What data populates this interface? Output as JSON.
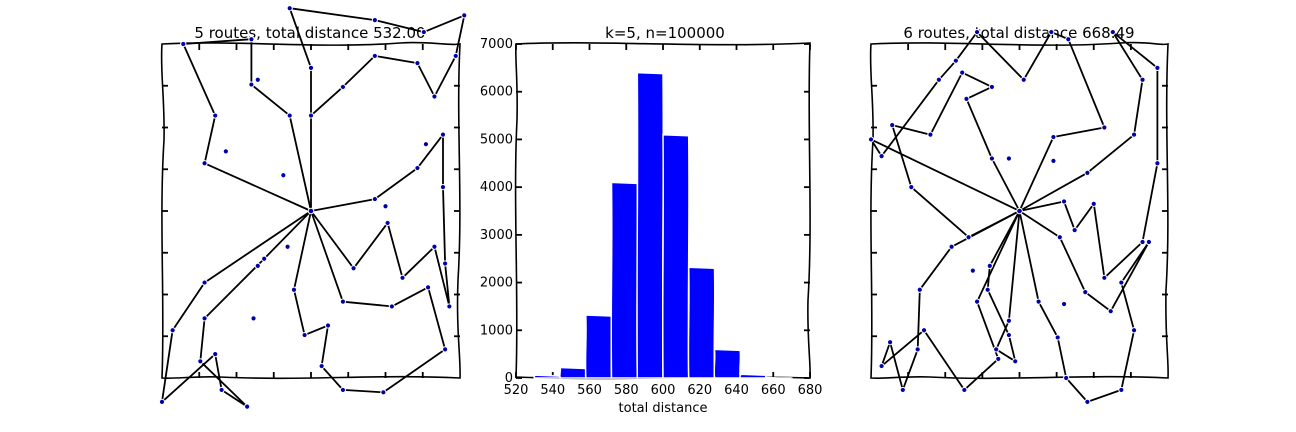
{
  "chart_data": [
    {
      "type": "scatter",
      "title": "5 routes, total distance 532.00",
      "depot": [
        0,
        0
      ],
      "xlim": [
        -7,
        7
      ],
      "ylim": [
        -7,
        7
      ],
      "routes": [
        [
          [
            0,
            0
          ],
          [
            -5,
            2
          ],
          [
            -4.5,
            4
          ],
          [
            -6,
            7
          ],
          [
            -2.8,
            7.2
          ],
          [
            -2.8,
            5.3
          ],
          [
            -1,
            4
          ],
          [
            0,
            0
          ]
        ],
        [
          [
            0,
            0
          ],
          [
            0,
            6
          ],
          [
            -1,
            8.5
          ],
          [
            3,
            8
          ],
          [
            5.3,
            7.5
          ],
          [
            7.2,
            8.2
          ],
          [
            6.8,
            6.5
          ],
          [
            5.8,
            4.8
          ],
          [
            5,
            6.2
          ],
          [
            3,
            6.5
          ],
          [
            1.5,
            5.2
          ],
          [
            0,
            4
          ],
          [
            0,
            0
          ]
        ],
        [
          [
            0,
            0
          ],
          [
            3,
            0.5
          ],
          [
            5,
            1.8
          ],
          [
            6.2,
            3.2
          ],
          [
            6.2,
            1
          ],
          [
            6.3,
            -2.2
          ],
          [
            6.5,
            -4
          ],
          [
            5.8,
            -1.5
          ],
          [
            4.3,
            -2.8
          ],
          [
            3.6,
            -0.5
          ],
          [
            2,
            -2.4
          ],
          [
            0,
            0
          ]
        ],
        [
          [
            0,
            0
          ],
          [
            1.5,
            -3.8
          ],
          [
            3.8,
            -4
          ],
          [
            5.5,
            -3.2
          ],
          [
            6.3,
            -5.8
          ],
          [
            3.4,
            -7.6
          ],
          [
            1.5,
            -7.5
          ],
          [
            0.5,
            -6.5
          ],
          [
            0.8,
            -4.8
          ],
          [
            -0.3,
            -5.2
          ],
          [
            -0.8,
            -3.3
          ],
          [
            0,
            0
          ]
        ],
        [
          [
            0,
            0
          ],
          [
            -2.2,
            -2
          ],
          [
            -5,
            -4.5
          ],
          [
            -5.2,
            -6.3
          ],
          [
            -3,
            -8.2
          ],
          [
            -4.2,
            -7.5
          ],
          [
            -4.5,
            -6
          ],
          [
            -7,
            -8
          ],
          [
            -6.5,
            -5
          ],
          [
            -5,
            -3
          ],
          [
            0,
            0
          ]
        ]
      ],
      "extra_stops": [
        [
          -4,
          2.5
        ],
        [
          -2.5,
          5.5
        ],
        [
          -1.3,
          1.5
        ],
        [
          3.5,
          0.2
        ],
        [
          5.4,
          2.8
        ],
        [
          -2.5,
          -2.3
        ],
        [
          -2.7,
          -4.5
        ],
        [
          -1.1,
          -1.5
        ]
      ]
    },
    {
      "type": "bar",
      "title": "k=5, n=100000",
      "xlabel": "total distance",
      "ylabel": "",
      "xlim": [
        520,
        680
      ],
      "ylim": [
        0,
        7000
      ],
      "xticks": [
        "520",
        "540",
        "560",
        "580",
        "600",
        "620",
        "640",
        "660",
        "680"
      ],
      "yticks": [
        "0",
        "1000",
        "2000",
        "3000",
        "4000",
        "5000",
        "6000",
        "7000"
      ],
      "bin_edges": [
        530,
        544,
        558,
        572,
        586,
        600,
        614,
        628,
        642,
        656,
        670
      ],
      "values": [
        60,
        220,
        1320,
        4100,
        6400,
        5100,
        2320,
        600,
        80,
        10
      ]
    },
    {
      "type": "scatter",
      "title": "6 routes, total distance 668.49",
      "depot": [
        0,
        0
      ],
      "xlim": [
        -7,
        7
      ],
      "ylim": [
        -7,
        7
      ],
      "routes": [
        [
          [
            0,
            0
          ],
          [
            -3.2,
            -1.5
          ],
          [
            -4.7,
            -3.3
          ],
          [
            -4.8,
            -5.8
          ],
          [
            -5.5,
            -7.5
          ],
          [
            -6.1,
            -5.5
          ],
          [
            -6.5,
            -6.5
          ],
          [
            -4.5,
            -5
          ],
          [
            -2.6,
            -7.5
          ],
          [
            -1,
            -6.2
          ],
          [
            -2,
            -3.8
          ],
          [
            0,
            0
          ]
        ],
        [
          [
            0,
            0
          ],
          [
            -2.4,
            -1.1
          ],
          [
            -5.1,
            1
          ],
          [
            -6,
            3.6
          ],
          [
            -4.2,
            3.2
          ],
          [
            -2.7,
            5.8
          ],
          [
            -1.3,
            5.2
          ],
          [
            -2.5,
            4.7
          ],
          [
            -1.3,
            2.2
          ],
          [
            0,
            0
          ]
        ],
        [
          [
            0,
            0
          ],
          [
            2.1,
            0.4
          ],
          [
            2.6,
            -0.8
          ],
          [
            3.5,
            0.3
          ],
          [
            4,
            -2.8
          ],
          [
            5.8,
            -1.3
          ],
          [
            6.5,
            2
          ],
          [
            6.5,
            6
          ],
          [
            4.4,
            7.5
          ],
          [
            5.8,
            5.5
          ],
          [
            5.4,
            3.2
          ],
          [
            3.2,
            1.6
          ],
          [
            0,
            0
          ]
        ],
        [
          [
            0,
            0
          ],
          [
            0.9,
            -3.8
          ],
          [
            1.8,
            -5.3
          ],
          [
            2.2,
            -7
          ],
          [
            3.2,
            -8
          ],
          [
            4.8,
            -7.5
          ],
          [
            5.4,
            -5
          ],
          [
            4.8,
            -3
          ],
          [
            6.1,
            -1.3
          ],
          [
            4.3,
            -4.2
          ],
          [
            3.1,
            -3.4
          ],
          [
            1.9,
            -1.1
          ],
          [
            0,
            0
          ]
        ],
        [
          [
            0,
            0
          ],
          [
            -1.4,
            -2.3
          ],
          [
            -1.5,
            -3.3
          ],
          [
            -0.5,
            -5.2
          ],
          [
            -0.2,
            -6.3
          ],
          [
            -1.1,
            -5.8
          ],
          [
            -0.5,
            -4.6
          ],
          [
            0,
            0
          ]
        ],
        [
          [
            0,
            0
          ],
          [
            -7,
            3
          ],
          [
            -6.5,
            2.3
          ],
          [
            -3.8,
            5.5
          ],
          [
            -3,
            6.3
          ],
          [
            -2,
            7.5
          ],
          [
            0.2,
            5.5
          ],
          [
            1.5,
            7.5
          ],
          [
            2.3,
            7.2
          ],
          [
            4,
            3.5
          ],
          [
            1.6,
            3.1
          ],
          [
            0,
            0
          ]
        ]
      ],
      "extra_stops": [
        [
          -0.5,
          2.2
        ],
        [
          1.6,
          2.1
        ],
        [
          2.1,
          -3.9
        ],
        [
          -2.2,
          -2.5
        ]
      ]
    }
  ]
}
